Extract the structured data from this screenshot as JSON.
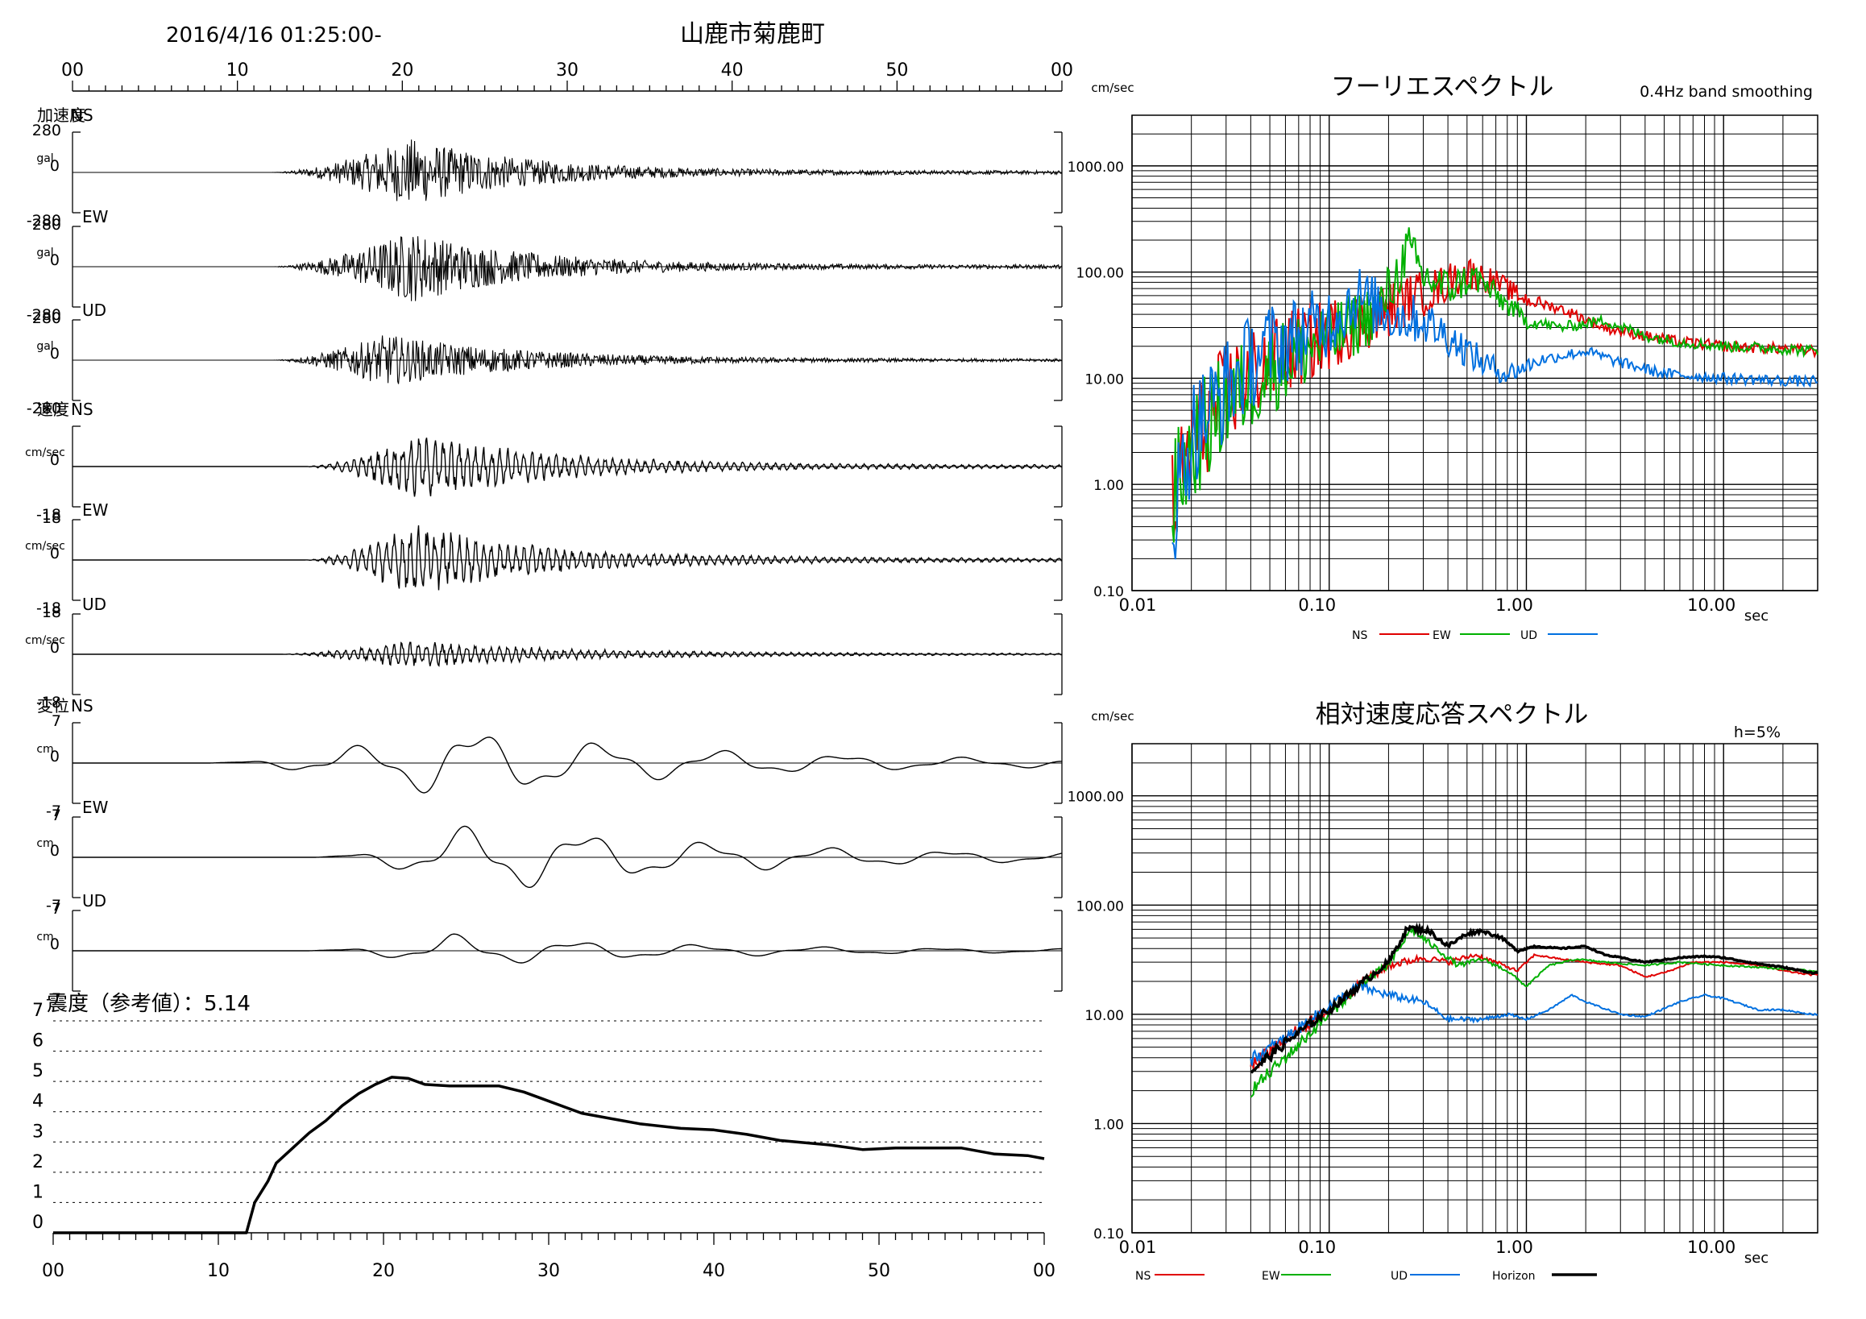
{
  "header": {
    "datetime": "2016/4/16 01:25:00-",
    "station": "山鹿市菊鹿町"
  },
  "chart_data": [
    {
      "id": "timeseries",
      "type": "line",
      "time_ticks": [
        "00",
        "10",
        "20",
        "30",
        "40",
        "50",
        "00"
      ],
      "xlim": [
        0,
        60
      ],
      "panels": [
        {
          "group_label": "加速度",
          "component": "NS",
          "unit": "gal",
          "ymax_label": "280",
          "zero_label": "0",
          "ymin_label": "-280",
          "ylim": [
            -280,
            280
          ],
          "kind": "acc",
          "start": 12,
          "end": 60,
          "amp": 0.85,
          "peak": 20.5,
          "decay": 7
        },
        {
          "group_label": "",
          "component": "EW",
          "unit": "gal",
          "ymax_label": "280",
          "zero_label": "0",
          "ymin_label": "-280",
          "ylim": [
            -280,
            280
          ],
          "kind": "acc",
          "start": 12,
          "end": 60,
          "amp": 0.9,
          "peak": 20.5,
          "decay": 7
        },
        {
          "group_label": "",
          "component": "UD",
          "unit": "gal",
          "ymax_label": "280",
          "zero_label": "0",
          "ymin_label": "-280",
          "ylim": [
            -280,
            280
          ],
          "kind": "acc",
          "start": 12,
          "end": 60,
          "amp": 0.65,
          "peak": 19,
          "decay": 8
        },
        {
          "group_label": "速度",
          "component": "NS",
          "unit": "cm/sec",
          "ymax_label": "",
          "zero_label": "0",
          "ymin_label": "-18",
          "ylim": [
            -18,
            18
          ],
          "kind": "vel",
          "start": 14,
          "end": 60,
          "amp": 0.85,
          "peak": 21,
          "decay": 8
        },
        {
          "group_label": "",
          "component": "EW",
          "unit": "cm/sec",
          "ymax_label": "18",
          "zero_label": "0",
          "ymin_label": "-18",
          "ylim": [
            -18,
            18
          ],
          "kind": "vel",
          "start": 14,
          "end": 60,
          "amp": 0.9,
          "peak": 20.5,
          "decay": 8
        },
        {
          "group_label": "",
          "component": "UD",
          "unit": "cm/sec",
          "ymax_label": "18",
          "zero_label": "0",
          "ymin_label": "-18",
          "ylim": [
            -18,
            18
          ],
          "kind": "vel",
          "start": 12.5,
          "end": 60,
          "amp": 0.35,
          "peak": 20,
          "decay": 10
        },
        {
          "group_label": "変位",
          "component": "NS",
          "unit": "cm",
          "ymax_label": "7",
          "zero_label": "0",
          "ymin_label": "-7",
          "ylim": [
            -7,
            7
          ],
          "kind": "disp",
          "start": 8,
          "end": 60,
          "amp": 0.9,
          "peak": 23,
          "decay": 14
        },
        {
          "group_label": "",
          "component": "EW",
          "unit": "cm",
          "ymax_label": "7",
          "zero_label": "0",
          "ymin_label": "-7",
          "ylim": [
            -7,
            7
          ],
          "kind": "disp",
          "start": 14.5,
          "end": 60,
          "amp": 0.9,
          "peak": 25,
          "decay": 14
        },
        {
          "group_label": "",
          "component": "UD",
          "unit": "cm",
          "ymax_label": "7",
          "zero_label": "0",
          "ymin_label": "-7",
          "ylim": [
            -7,
            7
          ],
          "kind": "disp",
          "start": 14,
          "end": 60,
          "amp": 0.4,
          "peak": 23,
          "decay": 14
        }
      ]
    },
    {
      "id": "intensity",
      "type": "line",
      "title": "震度（参考値）：5.14",
      "yticks": [
        "0",
        "1",
        "2",
        "3",
        "4",
        "5",
        "6",
        "7"
      ],
      "ylim": [
        0,
        7
      ],
      "xticks": [
        "00",
        "10",
        "20",
        "30",
        "40",
        "50",
        "00"
      ],
      "xlim": [
        0,
        60
      ],
      "points": [
        [
          0,
          0
        ],
        [
          11.7,
          0
        ],
        [
          12.2,
          1.0
        ],
        [
          13,
          1.7
        ],
        [
          13.5,
          2.3
        ],
        [
          14.5,
          2.8
        ],
        [
          15.5,
          3.3
        ],
        [
          16.5,
          3.7
        ],
        [
          17.5,
          4.2
        ],
        [
          18.5,
          4.6
        ],
        [
          19.5,
          4.9
        ],
        [
          20.5,
          5.14
        ],
        [
          21.5,
          5.1
        ],
        [
          22.5,
          4.9
        ],
        [
          24,
          4.85
        ],
        [
          27,
          4.85
        ],
        [
          28.5,
          4.65
        ],
        [
          29.5,
          4.45
        ],
        [
          31,
          4.15
        ],
        [
          32,
          3.95
        ],
        [
          34,
          3.75
        ],
        [
          35.5,
          3.6
        ],
        [
          38,
          3.45
        ],
        [
          40,
          3.4
        ],
        [
          42,
          3.25
        ],
        [
          44,
          3.05
        ],
        [
          47,
          2.9
        ],
        [
          49,
          2.75
        ],
        [
          51,
          2.8
        ],
        [
          55,
          2.8
        ],
        [
          57,
          2.6
        ],
        [
          59,
          2.55
        ],
        [
          60,
          2.45
        ]
      ]
    },
    {
      "id": "fourier",
      "type": "line",
      "title": "フーリエスペクトル",
      "subtitle": "0.4Hz band smoothing",
      "yunit": "cm/sec",
      "xunit": "sec",
      "xscale": "log",
      "yscale": "log",
      "xlim": [
        0.01,
        30
      ],
      "ylim": [
        0.1,
        3000
      ],
      "ytick_labels": [
        "1000.00",
        "100.00",
        "10.00",
        "1.00",
        "0.10"
      ],
      "ytick_values": [
        1000,
        100,
        10,
        1,
        0.1
      ],
      "xtick_labels": [
        "0.01",
        "0.10",
        "1.00",
        "10.00"
      ],
      "xtick_values": [
        0.01,
        0.1,
        1,
        10
      ],
      "series": [
        {
          "name": "NS",
          "color": "#e00000",
          "start": 0.016,
          "end": 30,
          "noise": 0.35,
          "points": [
            [
              0.016,
              0.6
            ],
            [
              0.02,
              2.5
            ],
            [
              0.03,
              7
            ],
            [
              0.05,
              15
            ],
            [
              0.08,
              22
            ],
            [
              0.12,
              30
            ],
            [
              0.18,
              40
            ],
            [
              0.25,
              55
            ],
            [
              0.35,
              70
            ],
            [
              0.5,
              100
            ],
            [
              0.7,
              80
            ],
            [
              1.0,
              55
            ],
            [
              1.5,
              45
            ],
            [
              2.5,
              30
            ],
            [
              4,
              25
            ],
            [
              6,
              22
            ],
            [
              10,
              20
            ],
            [
              20,
              19
            ],
            [
              30,
              18
            ]
          ]
        },
        {
          "name": "EW",
          "color": "#00b000",
          "start": 0.016,
          "end": 30,
          "noise": 0.35,
          "points": [
            [
              0.016,
              0.7
            ],
            [
              0.02,
              2.2
            ],
            [
              0.03,
              6
            ],
            [
              0.05,
              12
            ],
            [
              0.08,
              20
            ],
            [
              0.12,
              28
            ],
            [
              0.18,
              45
            ],
            [
              0.22,
              90
            ],
            [
              0.25,
              170
            ],
            [
              0.3,
              90
            ],
            [
              0.4,
              70
            ],
            [
              0.55,
              90
            ],
            [
              0.7,
              60
            ],
            [
              1.0,
              35
            ],
            [
              1.5,
              30
            ],
            [
              2.5,
              35
            ],
            [
              4,
              25
            ],
            [
              6,
              22
            ],
            [
              10,
              20
            ],
            [
              20,
              19
            ],
            [
              30,
              18
            ]
          ]
        },
        {
          "name": "UD",
          "color": "#0070e0",
          "start": 0.016,
          "end": 30,
          "noise": 0.35,
          "points": [
            [
              0.016,
              0.5
            ],
            [
              0.02,
              3
            ],
            [
              0.03,
              8
            ],
            [
              0.045,
              18
            ],
            [
              0.07,
              25
            ],
            [
              0.1,
              35
            ],
            [
              0.14,
              60
            ],
            [
              0.2,
              40
            ],
            [
              0.3,
              35
            ],
            [
              0.4,
              25
            ],
            [
              0.6,
              14
            ],
            [
              0.8,
              11
            ],
            [
              1.2,
              15
            ],
            [
              2.0,
              18
            ],
            [
              3,
              14
            ],
            [
              5,
              11
            ],
            [
              10,
              10
            ],
            [
              20,
              9.5
            ],
            [
              30,
              9.3
            ]
          ]
        }
      ]
    },
    {
      "id": "response",
      "type": "line",
      "title": "相対速度応答スペクトル",
      "damping": "h=5%",
      "yunit": "cm/sec",
      "xunit": "sec",
      "xscale": "log",
      "yscale": "log",
      "xlim": [
        0.01,
        30
      ],
      "ylim": [
        0.1,
        3000
      ],
      "ytick_labels": [
        "1000.00",
        "100.00",
        "10.00",
        "1.00",
        "0.10"
      ],
      "ytick_values": [
        1000,
        100,
        10,
        1,
        0.1
      ],
      "xtick_labels": [
        "0.01",
        "0.10",
        "1.00",
        "10.00"
      ],
      "xtick_values": [
        0.01,
        0.1,
        1,
        10
      ],
      "series": [
        {
          "name": "NS",
          "color": "#e00000",
          "start": 0.04,
          "end": 30,
          "noise": 0.05,
          "points": [
            [
              0.04,
              3.3
            ],
            [
              0.06,
              6
            ],
            [
              0.1,
              11
            ],
            [
              0.15,
              20
            ],
            [
              0.2,
              28
            ],
            [
              0.3,
              33
            ],
            [
              0.4,
              30
            ],
            [
              0.55,
              35
            ],
            [
              0.7,
              30
            ],
            [
              0.9,
              25
            ],
            [
              1.1,
              35
            ],
            [
              1.5,
              32
            ],
            [
              2,
              30
            ],
            [
              3,
              28
            ],
            [
              4,
              22
            ],
            [
              5,
              24
            ],
            [
              7,
              30
            ],
            [
              10,
              30
            ],
            [
              15,
              28
            ],
            [
              20,
              25
            ],
            [
              28,
              23
            ]
          ]
        },
        {
          "name": "EW",
          "color": "#00b000",
          "start": 0.04,
          "end": 30,
          "noise": 0.05,
          "points": [
            [
              0.04,
              2.0
            ],
            [
              0.06,
              4
            ],
            [
              0.1,
              10
            ],
            [
              0.15,
              20
            ],
            [
              0.2,
              28
            ],
            [
              0.26,
              60
            ],
            [
              0.35,
              40
            ],
            [
              0.45,
              28
            ],
            [
              0.6,
              32
            ],
            [
              0.8,
              25
            ],
            [
              1.0,
              18
            ],
            [
              1.3,
              28
            ],
            [
              1.8,
              32
            ],
            [
              2.5,
              30
            ],
            [
              4,
              28
            ],
            [
              6,
              30
            ],
            [
              10,
              28
            ],
            [
              15,
              27
            ],
            [
              20,
              26
            ],
            [
              28,
              25
            ]
          ]
        },
        {
          "name": "UD",
          "color": "#0070e0",
          "start": 0.04,
          "end": 30,
          "noise": 0.05,
          "points": [
            [
              0.04,
              3.8
            ],
            [
              0.06,
              6
            ],
            [
              0.1,
              12
            ],
            [
              0.14,
              18
            ],
            [
              0.2,
              15
            ],
            [
              0.3,
              13
            ],
            [
              0.4,
              9
            ],
            [
              0.6,
              9
            ],
            [
              0.8,
              10
            ],
            [
              1.0,
              9
            ],
            [
              1.3,
              11
            ],
            [
              1.7,
              15
            ],
            [
              2,
              13
            ],
            [
              3,
              10
            ],
            [
              4,
              9.5
            ],
            [
              6,
              13
            ],
            [
              8,
              15
            ],
            [
              10,
              14
            ],
            [
              15,
              11
            ],
            [
              20,
              11
            ],
            [
              28,
              10
            ]
          ]
        },
        {
          "name": "Horizon",
          "color": "#000000",
          "start": 0.04,
          "end": 30,
          "noise": 0.04,
          "points": [
            [
              0.04,
              3.0
            ],
            [
              0.06,
              5.5
            ],
            [
              0.1,
              11
            ],
            [
              0.15,
              20
            ],
            [
              0.2,
              30
            ],
            [
              0.25,
              62
            ],
            [
              0.32,
              58
            ],
            [
              0.4,
              42
            ],
            [
              0.5,
              55
            ],
            [
              0.6,
              58
            ],
            [
              0.75,
              50
            ],
            [
              0.9,
              38
            ],
            [
              1.1,
              42
            ],
            [
              1.5,
              40
            ],
            [
              2,
              42
            ],
            [
              2.5,
              35
            ],
            [
              3,
              33
            ],
            [
              4,
              30
            ],
            [
              6,
              33
            ],
            [
              8,
              34
            ],
            [
              10,
              33
            ],
            [
              15,
              29
            ],
            [
              20,
              27
            ],
            [
              28,
              24
            ]
          ]
        }
      ]
    }
  ]
}
